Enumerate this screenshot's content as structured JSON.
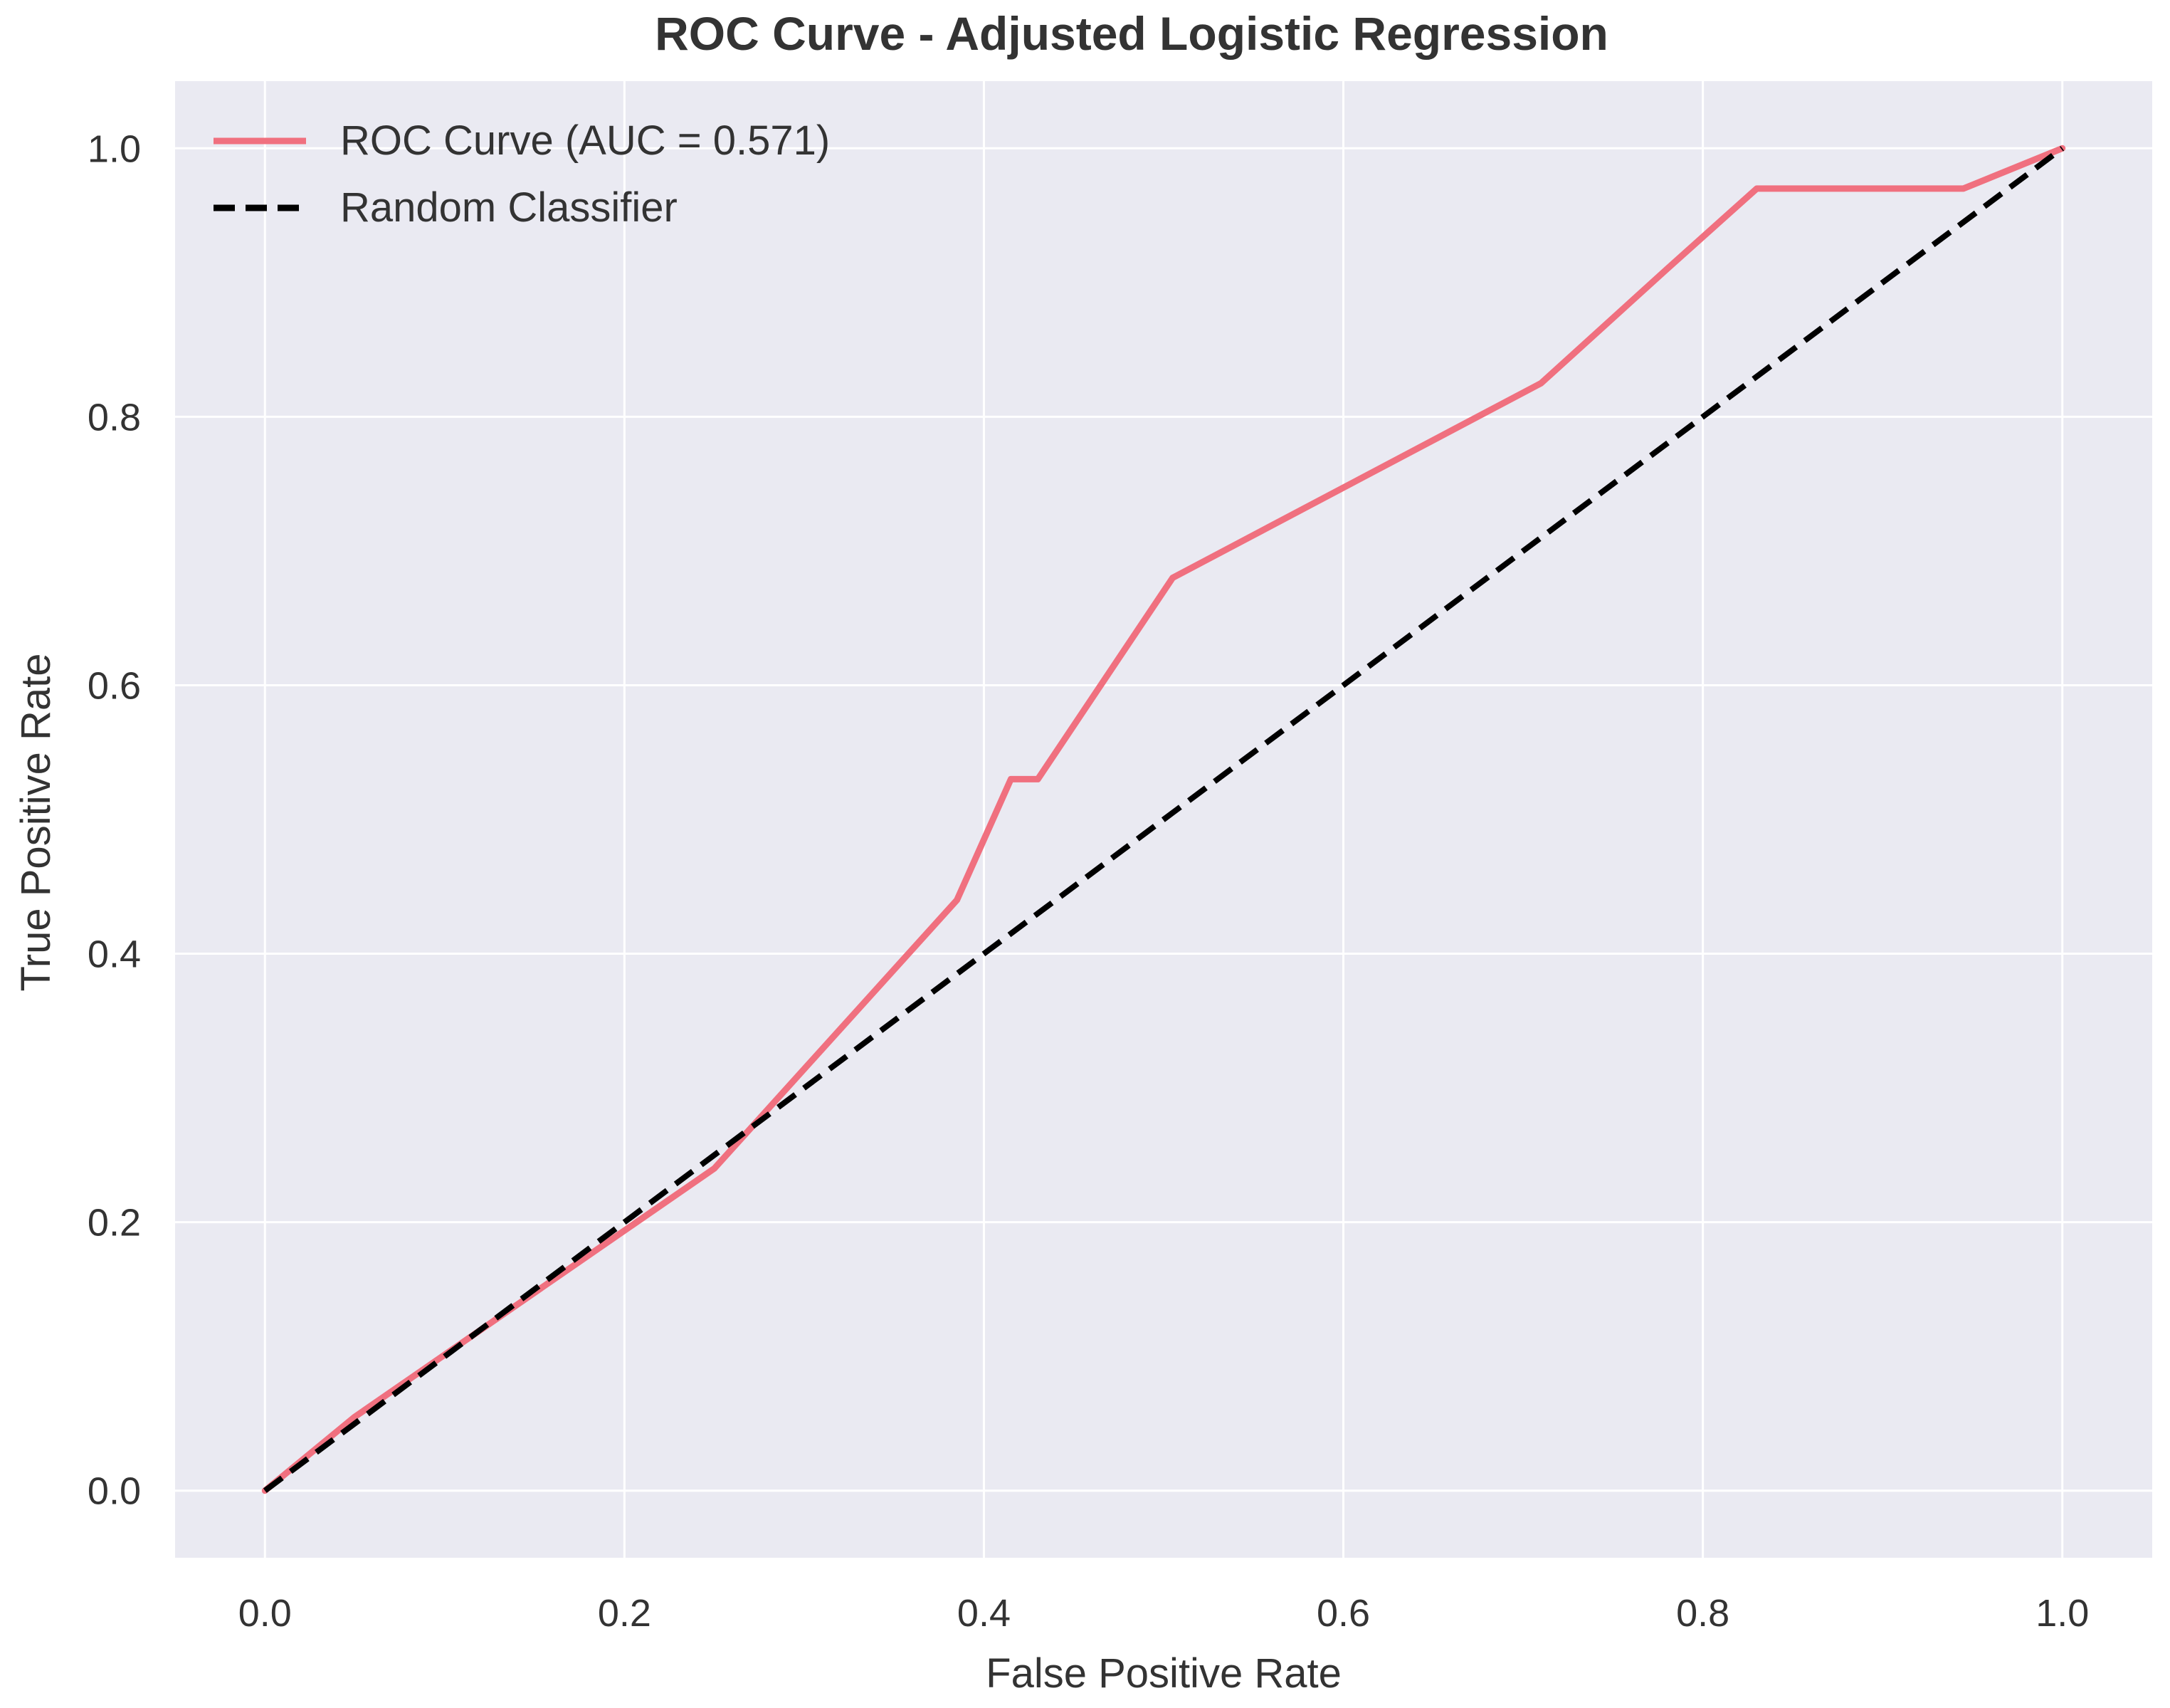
{
  "chart_data": {
    "type": "line",
    "title": "ROC Curve - Adjusted Logistic Regression",
    "xlabel": "False Positive Rate",
    "ylabel": "True Positive Rate",
    "xlim": [
      -0.05,
      1.05
    ],
    "ylim": [
      -0.05,
      1.05
    ],
    "xticks": [
      0.0,
      0.2,
      0.4,
      0.6,
      0.8,
      1.0
    ],
    "yticks": [
      0.0,
      0.2,
      0.4,
      0.6,
      0.8,
      1.0
    ],
    "xtick_labels": [
      "0.0",
      "0.2",
      "0.4",
      "0.6",
      "0.8",
      "1.0"
    ],
    "ytick_labels": [
      "0.0",
      "0.2",
      "0.4",
      "0.6",
      "0.8",
      "1.0"
    ],
    "grid": true,
    "legend_position": "top-left",
    "series": [
      {
        "name": "ROC Curve (AUC = 0.571)",
        "style": "solid",
        "color": "#f0707f",
        "x": [
          0.0,
          0.05,
          0.25,
          0.385,
          0.415,
          0.43,
          0.505,
          0.71,
          0.78,
          0.83,
          0.945,
          1.0
        ],
        "y": [
          0.0,
          0.055,
          0.24,
          0.44,
          0.53,
          0.53,
          0.68,
          0.825,
          0.91,
          0.97,
          0.97,
          1.0
        ]
      },
      {
        "name": "Random Classifier",
        "style": "dashed",
        "color": "#000000",
        "x": [
          0.0,
          1.0
        ],
        "y": [
          0.0,
          1.0
        ]
      }
    ]
  },
  "colors": {
    "plot_background": "#eaeaf2",
    "grid": "#ffffff",
    "text": "#333333"
  }
}
